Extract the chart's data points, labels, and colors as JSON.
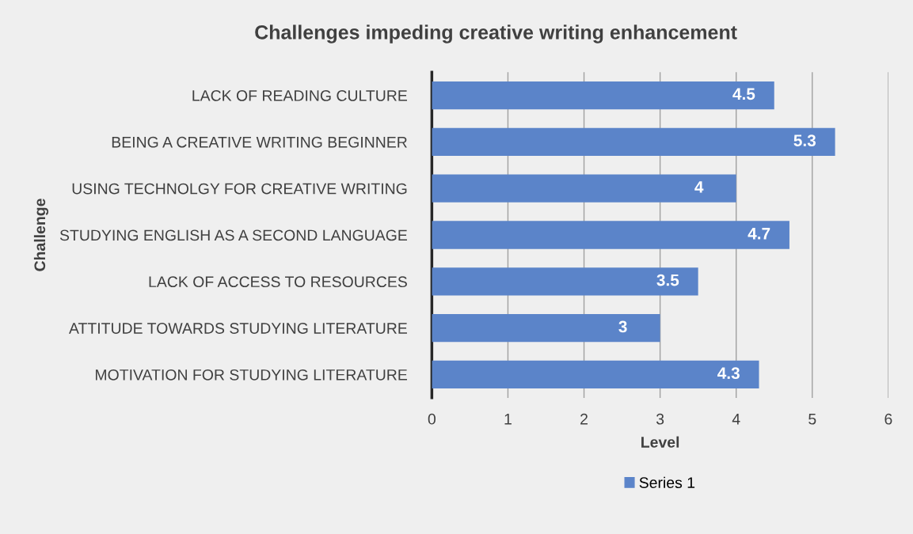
{
  "chart_data": {
    "type": "bar",
    "orientation": "horizontal",
    "title": "Challenges impeding creative writing enhancement",
    "xlabel": "Level",
    "ylabel": "Challenge",
    "categories": [
      "LACK OF READING CULTURE",
      "BEING A CREATIVE WRITING BEGINNER",
      "USING TECHNOLGY FOR CREATIVE WRITING",
      "STUDYING ENGLISH AS A SECOND LANGUAGE",
      "LACK OF ACCESS TO RESOURCES",
      "ATTITUDE TOWARDS STUDYING LITERATURE",
      "MOTIVATION FOR STUDYING LITERATURE"
    ],
    "series": [
      {
        "name": "Series 1",
        "color": "#5b84c9",
        "values": [
          4.5,
          5.3,
          4,
          4.7,
          3.5,
          3,
          4.3
        ]
      }
    ],
    "xlim": [
      0,
      6
    ],
    "xticks": [
      0,
      1,
      2,
      3,
      4,
      5,
      6
    ],
    "grid": "x",
    "legend": "bottom",
    "data_labels": true
  }
}
